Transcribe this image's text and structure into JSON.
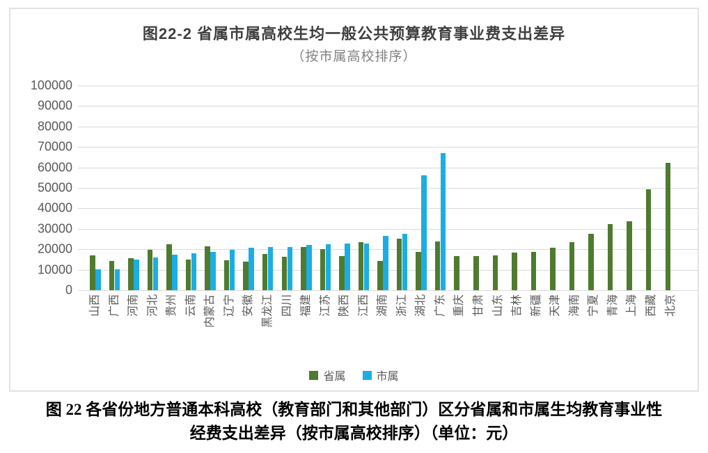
{
  "figure": {
    "title": "图22-2 省属市属高校生均一般公共预算教育事业费支出差异",
    "subtitle": "（按市属高校排序）",
    "caption_line1": "图 22 各省份地方普通本科高校（教育部门和其他部门）区分省属和市属生均教育事业性",
    "caption_line2": "经费支出差异（按市属高校排序）（单位：元）"
  },
  "colors": {
    "provincial_green": "#4E7B2F",
    "municipal_blue": "#1CADE4",
    "gridline": "#d9d9d9",
    "axis_text": "#595959",
    "title_text": "#3f3f3f",
    "subtitle_text": "#808080"
  },
  "chart_data": {
    "type": "bar",
    "title": "图22-2 省属市属高校生均一般公共预算教育事业费支出差异",
    "subtitle": "（按市属高校排序）",
    "unit": "元",
    "grid": "horizontal",
    "legend_position": "bottom",
    "ylim": [
      0,
      100000
    ],
    "ytick_interval": 10000,
    "ytick_labels": [
      "0",
      "10000",
      "20000",
      "30000",
      "40000",
      "50000",
      "60000",
      "70000",
      "80000",
      "90000",
      "100000"
    ],
    "categories": [
      "山西",
      "广西",
      "河南",
      "河北",
      "贵州",
      "云南",
      "内蒙古",
      "辽宁",
      "安徽",
      "黑龙江",
      "四川",
      "福建",
      "江苏",
      "陕西",
      "江西",
      "湖南",
      "浙江",
      "湖北",
      "广东",
      "重庆",
      "甘肃",
      "山东",
      "吉林",
      "新疆",
      "天津",
      "海南",
      "宁夏",
      "青海",
      "上海",
      "西藏",
      "北京"
    ],
    "series": [
      {
        "name": "省属",
        "color": "#4E7B2F",
        "values": [
          17000,
          14400,
          15800,
          19900,
          22600,
          15100,
          21600,
          14600,
          13900,
          17600,
          16500,
          21200,
          20100,
          16700,
          23400,
          14300,
          25300,
          18800,
          23900,
          16700,
          16600,
          16900,
          18300,
          18600,
          20800,
          23600,
          27500,
          32200,
          33600,
          49400,
          62200
        ]
      },
      {
        "name": "市属",
        "color": "#1CADE4",
        "values": [
          10200,
          10200,
          14900,
          16100,
          17500,
          17900,
          18700,
          19700,
          20600,
          21000,
          21200,
          22000,
          22300,
          22700,
          22900,
          26400,
          27400,
          56000,
          67000,
          null,
          null,
          null,
          null,
          null,
          null,
          null,
          null,
          null,
          null,
          null,
          null
        ]
      }
    ]
  }
}
